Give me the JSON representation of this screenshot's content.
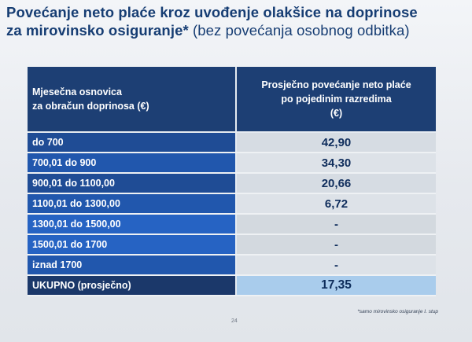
{
  "slide": {
    "title_line1": "Povećanje neto plaće kroz uvođenje olakšice na doprinose",
    "title_line2_bold": "za mirovinsko osiguranje*",
    "title_line2_rest": " (bez povećanja osobnog odbitka)"
  },
  "table": {
    "header_col1_line1": "Mjesečna osnovica",
    "header_col1_line2": "za obračun doprinosa (€)",
    "header_col2_line1": "Prosječno povećanje neto plaće",
    "header_col2_line2": "po pojedinim razredima",
    "header_col2_line3": "(€)",
    "rows": [
      {
        "label": "do 700",
        "value": "42,90"
      },
      {
        "label": "700,01 do 900",
        "value": "34,30"
      },
      {
        "label": "900,01 do 1100,00",
        "value": "20,66"
      },
      {
        "label": "1100,01 do 1300,00",
        "value": "6,72"
      },
      {
        "label": "1300,01 do 1500,00",
        "value": "-"
      },
      {
        "label": "1500,01 do 1700",
        "value": "-"
      },
      {
        "label": "iznad 1700",
        "value": "-"
      }
    ],
    "total": {
      "label": "UKUPNO (prosječno)",
      "value": "17,35"
    }
  },
  "footer": {
    "page_number": "24",
    "footnote": "*samo mirovinsko osiguranje I. stup"
  },
  "colors": {
    "title": "#163d73",
    "header_bg": "#1d3f74",
    "total_value_bg": "#a9ccec"
  }
}
